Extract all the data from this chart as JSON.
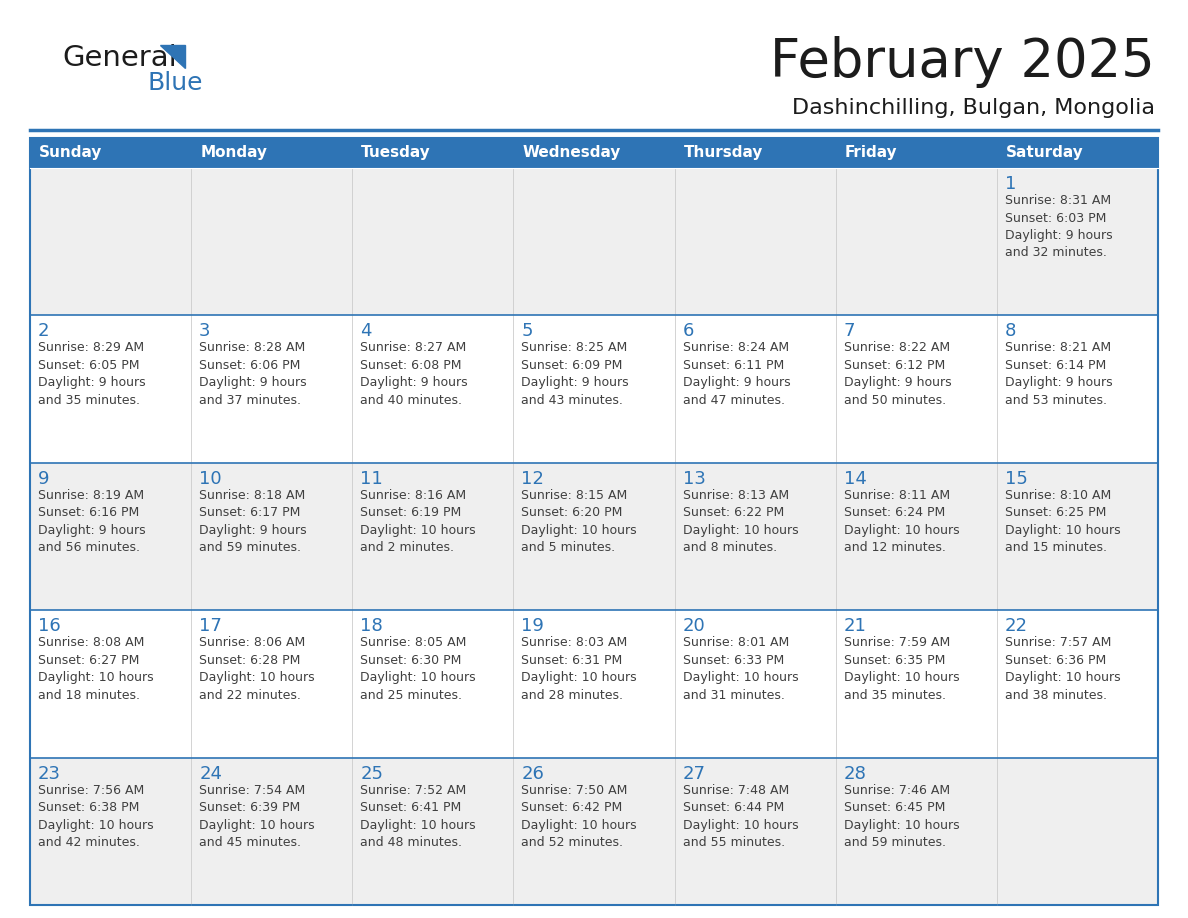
{
  "title": "February 2025",
  "subtitle": "Dashinchilling, Bulgan, Mongolia",
  "header_bg": "#2E74B5",
  "header_text_color": "#FFFFFF",
  "cell_bg_white": "#FFFFFF",
  "cell_bg_gray": "#EFEFEF",
  "day_number_color": "#2E74B5",
  "text_color": "#404040",
  "border_color": "#2E74B5",
  "line_color": "#2E74B5",
  "col_sep_color": "#CCCCCC",
  "days_of_week": [
    "Sunday",
    "Monday",
    "Tuesday",
    "Wednesday",
    "Thursday",
    "Friday",
    "Saturday"
  ],
  "calendar_data": [
    [
      {
        "day": null,
        "info": null
      },
      {
        "day": null,
        "info": null
      },
      {
        "day": null,
        "info": null
      },
      {
        "day": null,
        "info": null
      },
      {
        "day": null,
        "info": null
      },
      {
        "day": null,
        "info": null
      },
      {
        "day": 1,
        "info": "Sunrise: 8:31 AM\nSunset: 6:03 PM\nDaylight: 9 hours\nand 32 minutes."
      }
    ],
    [
      {
        "day": 2,
        "info": "Sunrise: 8:29 AM\nSunset: 6:05 PM\nDaylight: 9 hours\nand 35 minutes."
      },
      {
        "day": 3,
        "info": "Sunrise: 8:28 AM\nSunset: 6:06 PM\nDaylight: 9 hours\nand 37 minutes."
      },
      {
        "day": 4,
        "info": "Sunrise: 8:27 AM\nSunset: 6:08 PM\nDaylight: 9 hours\nand 40 minutes."
      },
      {
        "day": 5,
        "info": "Sunrise: 8:25 AM\nSunset: 6:09 PM\nDaylight: 9 hours\nand 43 minutes."
      },
      {
        "day": 6,
        "info": "Sunrise: 8:24 AM\nSunset: 6:11 PM\nDaylight: 9 hours\nand 47 minutes."
      },
      {
        "day": 7,
        "info": "Sunrise: 8:22 AM\nSunset: 6:12 PM\nDaylight: 9 hours\nand 50 minutes."
      },
      {
        "day": 8,
        "info": "Sunrise: 8:21 AM\nSunset: 6:14 PM\nDaylight: 9 hours\nand 53 minutes."
      }
    ],
    [
      {
        "day": 9,
        "info": "Sunrise: 8:19 AM\nSunset: 6:16 PM\nDaylight: 9 hours\nand 56 minutes."
      },
      {
        "day": 10,
        "info": "Sunrise: 8:18 AM\nSunset: 6:17 PM\nDaylight: 9 hours\nand 59 minutes."
      },
      {
        "day": 11,
        "info": "Sunrise: 8:16 AM\nSunset: 6:19 PM\nDaylight: 10 hours\nand 2 minutes."
      },
      {
        "day": 12,
        "info": "Sunrise: 8:15 AM\nSunset: 6:20 PM\nDaylight: 10 hours\nand 5 minutes."
      },
      {
        "day": 13,
        "info": "Sunrise: 8:13 AM\nSunset: 6:22 PM\nDaylight: 10 hours\nand 8 minutes."
      },
      {
        "day": 14,
        "info": "Sunrise: 8:11 AM\nSunset: 6:24 PM\nDaylight: 10 hours\nand 12 minutes."
      },
      {
        "day": 15,
        "info": "Sunrise: 8:10 AM\nSunset: 6:25 PM\nDaylight: 10 hours\nand 15 minutes."
      }
    ],
    [
      {
        "day": 16,
        "info": "Sunrise: 8:08 AM\nSunset: 6:27 PM\nDaylight: 10 hours\nand 18 minutes."
      },
      {
        "day": 17,
        "info": "Sunrise: 8:06 AM\nSunset: 6:28 PM\nDaylight: 10 hours\nand 22 minutes."
      },
      {
        "day": 18,
        "info": "Sunrise: 8:05 AM\nSunset: 6:30 PM\nDaylight: 10 hours\nand 25 minutes."
      },
      {
        "day": 19,
        "info": "Sunrise: 8:03 AM\nSunset: 6:31 PM\nDaylight: 10 hours\nand 28 minutes."
      },
      {
        "day": 20,
        "info": "Sunrise: 8:01 AM\nSunset: 6:33 PM\nDaylight: 10 hours\nand 31 minutes."
      },
      {
        "day": 21,
        "info": "Sunrise: 7:59 AM\nSunset: 6:35 PM\nDaylight: 10 hours\nand 35 minutes."
      },
      {
        "day": 22,
        "info": "Sunrise: 7:57 AM\nSunset: 6:36 PM\nDaylight: 10 hours\nand 38 minutes."
      }
    ],
    [
      {
        "day": 23,
        "info": "Sunrise: 7:56 AM\nSunset: 6:38 PM\nDaylight: 10 hours\nand 42 minutes."
      },
      {
        "day": 24,
        "info": "Sunrise: 7:54 AM\nSunset: 6:39 PM\nDaylight: 10 hours\nand 45 minutes."
      },
      {
        "day": 25,
        "info": "Sunrise: 7:52 AM\nSunset: 6:41 PM\nDaylight: 10 hours\nand 48 minutes."
      },
      {
        "day": 26,
        "info": "Sunrise: 7:50 AM\nSunset: 6:42 PM\nDaylight: 10 hours\nand 52 minutes."
      },
      {
        "day": 27,
        "info": "Sunrise: 7:48 AM\nSunset: 6:44 PM\nDaylight: 10 hours\nand 55 minutes."
      },
      {
        "day": 28,
        "info": "Sunrise: 7:46 AM\nSunset: 6:45 PM\nDaylight: 10 hours\nand 59 minutes."
      },
      {
        "day": null,
        "info": null
      }
    ]
  ],
  "row_bg": [
    "#EFEFEF",
    "#FFFFFF",
    "#EFEFEF",
    "#FFFFFF",
    "#EFEFEF"
  ]
}
